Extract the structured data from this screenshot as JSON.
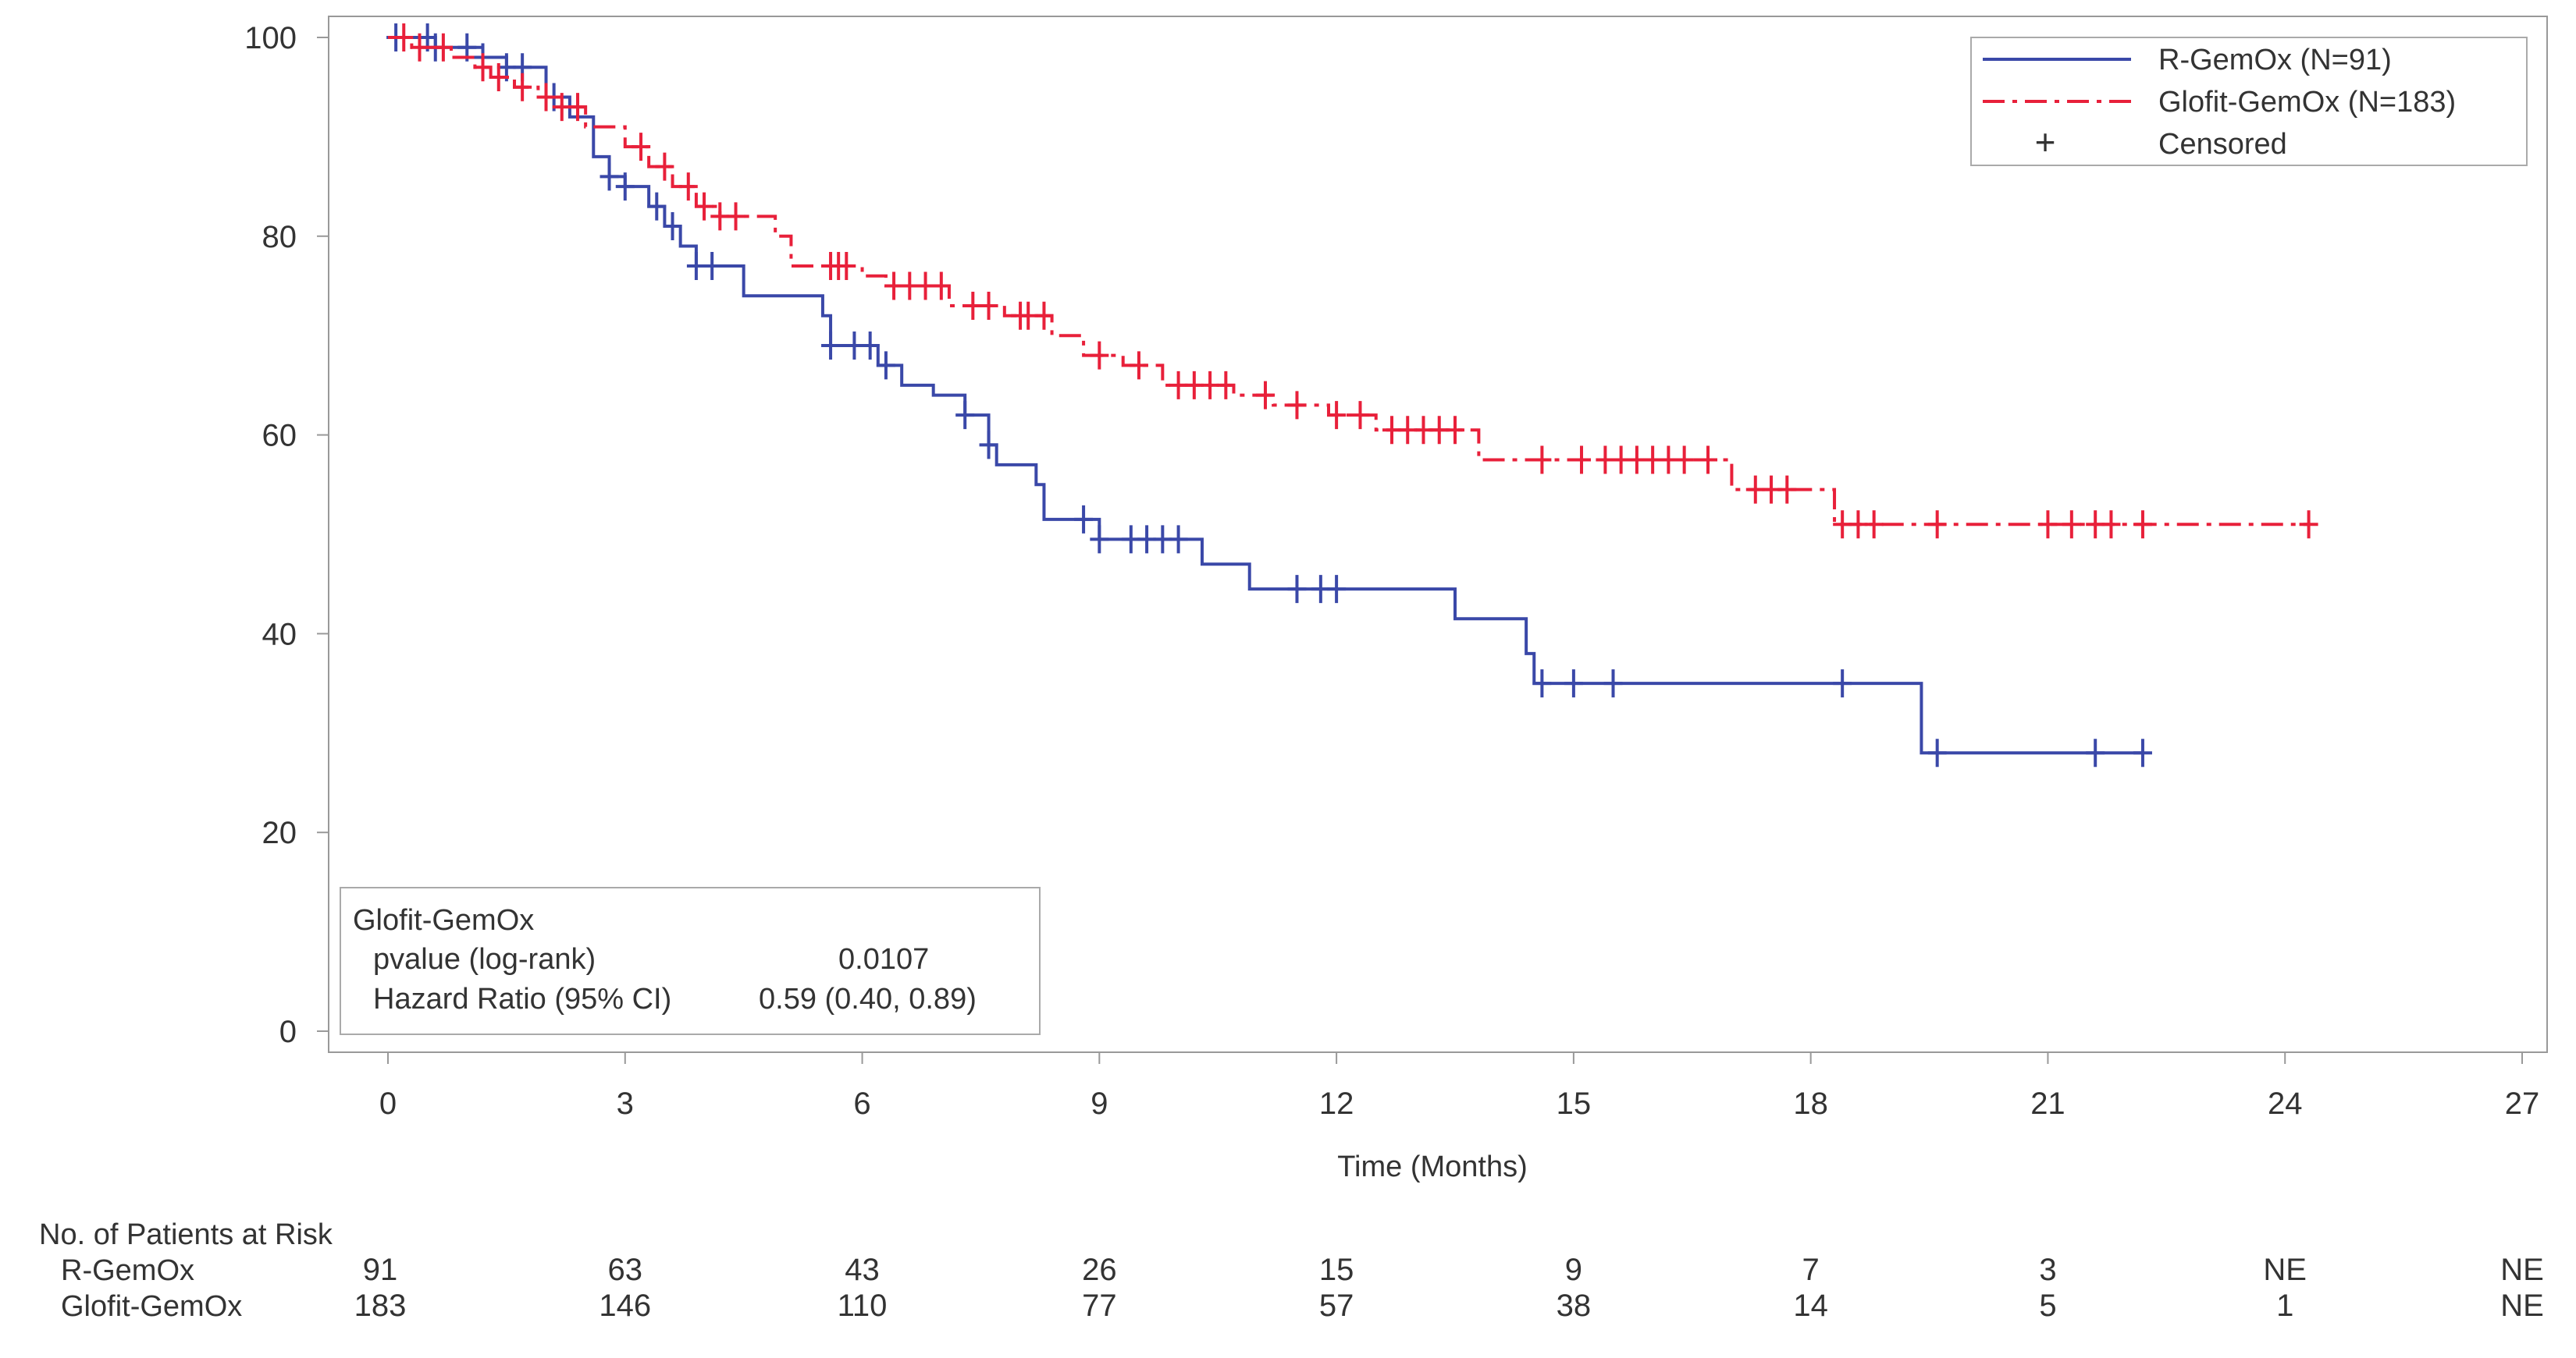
{
  "chart_data": {
    "type": "line",
    "subtype": "kaplan-meier",
    "xlabel": "Time (Months)",
    "ylabel": "",
    "xlim": [
      0,
      27
    ],
    "ylim": [
      0,
      100
    ],
    "xticks": [
      0,
      3,
      6,
      9,
      12,
      15,
      18,
      21,
      24,
      27
    ],
    "yticks": [
      0,
      20,
      40,
      60,
      80,
      100
    ],
    "grid": false,
    "legend_position": "top-right",
    "legend": [
      "R-GemOx (N=91)",
      "Glofit-GemOx (N=183)",
      "Censored"
    ],
    "censor_symbol": "+",
    "series": [
      {
        "name": "R-GemOx (N=91)",
        "color": "#3a48a8",
        "style": "solid",
        "steps": [
          [
            0,
            100
          ],
          [
            0.6,
            99
          ],
          [
            1.2,
            98
          ],
          [
            1.5,
            97
          ],
          [
            2.0,
            94
          ],
          [
            2.3,
            92
          ],
          [
            2.6,
            88
          ],
          [
            2.8,
            86
          ],
          [
            3.0,
            85
          ],
          [
            3.3,
            83
          ],
          [
            3.5,
            81
          ],
          [
            3.7,
            79
          ],
          [
            3.9,
            77
          ],
          [
            4.5,
            74
          ],
          [
            5.5,
            72
          ],
          [
            5.6,
            69
          ],
          [
            6.2,
            67
          ],
          [
            6.5,
            65
          ],
          [
            6.9,
            64
          ],
          [
            7.3,
            62
          ],
          [
            7.6,
            59
          ],
          [
            7.7,
            57
          ],
          [
            8.2,
            55
          ],
          [
            8.3,
            51.5
          ],
          [
            9.0,
            49.5
          ],
          [
            10.3,
            47
          ],
          [
            10.9,
            44.5
          ],
          [
            13.5,
            41.5
          ],
          [
            14.4,
            38
          ],
          [
            14.5,
            35
          ],
          [
            19.4,
            28
          ]
        ],
        "end": 22.2,
        "censored": [
          0.1,
          0.5,
          0.6,
          1.0,
          1.2,
          1.5,
          1.7,
          2.1,
          2.8,
          3.0,
          3.4,
          3.6,
          3.9,
          4.1,
          5.6,
          5.9,
          6.1,
          6.3,
          7.3,
          7.6,
          8.8,
          9.0,
          9.4,
          9.6,
          9.8,
          10.0,
          11.5,
          11.8,
          12.0,
          14.6,
          15.0,
          15.5,
          18.4,
          19.6,
          21.6,
          22.2
        ]
      },
      {
        "name": "Glofit-GemOx (N=183)",
        "color": "#e8203a",
        "style": "dash-dot",
        "steps": [
          [
            0,
            100
          ],
          [
            0.3,
            99
          ],
          [
            0.8,
            98
          ],
          [
            1.1,
            97
          ],
          [
            1.3,
            96
          ],
          [
            1.6,
            95
          ],
          [
            1.9,
            94
          ],
          [
            2.2,
            93
          ],
          [
            2.5,
            91
          ],
          [
            3.0,
            89
          ],
          [
            3.3,
            87
          ],
          [
            3.6,
            85
          ],
          [
            3.9,
            83
          ],
          [
            4.2,
            82
          ],
          [
            4.9,
            80
          ],
          [
            5.1,
            77
          ],
          [
            6.0,
            76
          ],
          [
            6.3,
            75
          ],
          [
            7.1,
            73
          ],
          [
            7.8,
            72
          ],
          [
            8.4,
            70
          ],
          [
            8.8,
            68
          ],
          [
            9.3,
            67
          ],
          [
            9.8,
            65
          ],
          [
            10.7,
            64
          ],
          [
            11.2,
            63
          ],
          [
            11.9,
            62
          ],
          [
            12.5,
            60.5
          ],
          [
            13.8,
            57.5
          ],
          [
            17.0,
            54.5
          ],
          [
            18.3,
            51
          ]
        ],
        "end": 24.3,
        "censored": [
          0.2,
          0.4,
          0.7,
          1.2,
          1.4,
          1.7,
          2.0,
          2.2,
          2.4,
          3.2,
          3.5,
          3.8,
          4.0,
          4.2,
          4.4,
          5.6,
          5.7,
          5.8,
          6.4,
          6.6,
          6.8,
          7.0,
          7.4,
          7.6,
          8.0,
          8.1,
          8.3,
          9.0,
          9.5,
          10.0,
          10.2,
          10.4,
          10.6,
          11.1,
          11.5,
          12.0,
          12.3,
          12.7,
          12.9,
          13.1,
          13.3,
          13.5,
          14.6,
          15.1,
          15.4,
          15.6,
          15.8,
          16.0,
          16.2,
          16.4,
          16.7,
          17.3,
          17.5,
          17.7,
          18.4,
          18.6,
          18.8,
          19.6,
          21.0,
          21.3,
          21.6,
          21.8,
          22.2,
          24.3
        ]
      }
    ]
  },
  "stats_box": {
    "title": "Glofit-GemOx",
    "rows": [
      {
        "label": "pvalue (log-rank)",
        "value": "0.0107"
      },
      {
        "label": "Hazard Ratio (95% CI)",
        "value": "0.59 (0.40, 0.89)"
      }
    ]
  },
  "risk_table": {
    "title": "No. of Patients at Risk",
    "rows": [
      {
        "label": "R-GemOx",
        "values": [
          "91",
          "63",
          "43",
          "26",
          "15",
          "9",
          "7",
          "3",
          "NE",
          "NE"
        ]
      },
      {
        "label": "Glofit-GemOx",
        "values": [
          "183",
          "146",
          "110",
          "77",
          "57",
          "38",
          "14",
          "5",
          "1",
          "NE"
        ]
      }
    ]
  }
}
